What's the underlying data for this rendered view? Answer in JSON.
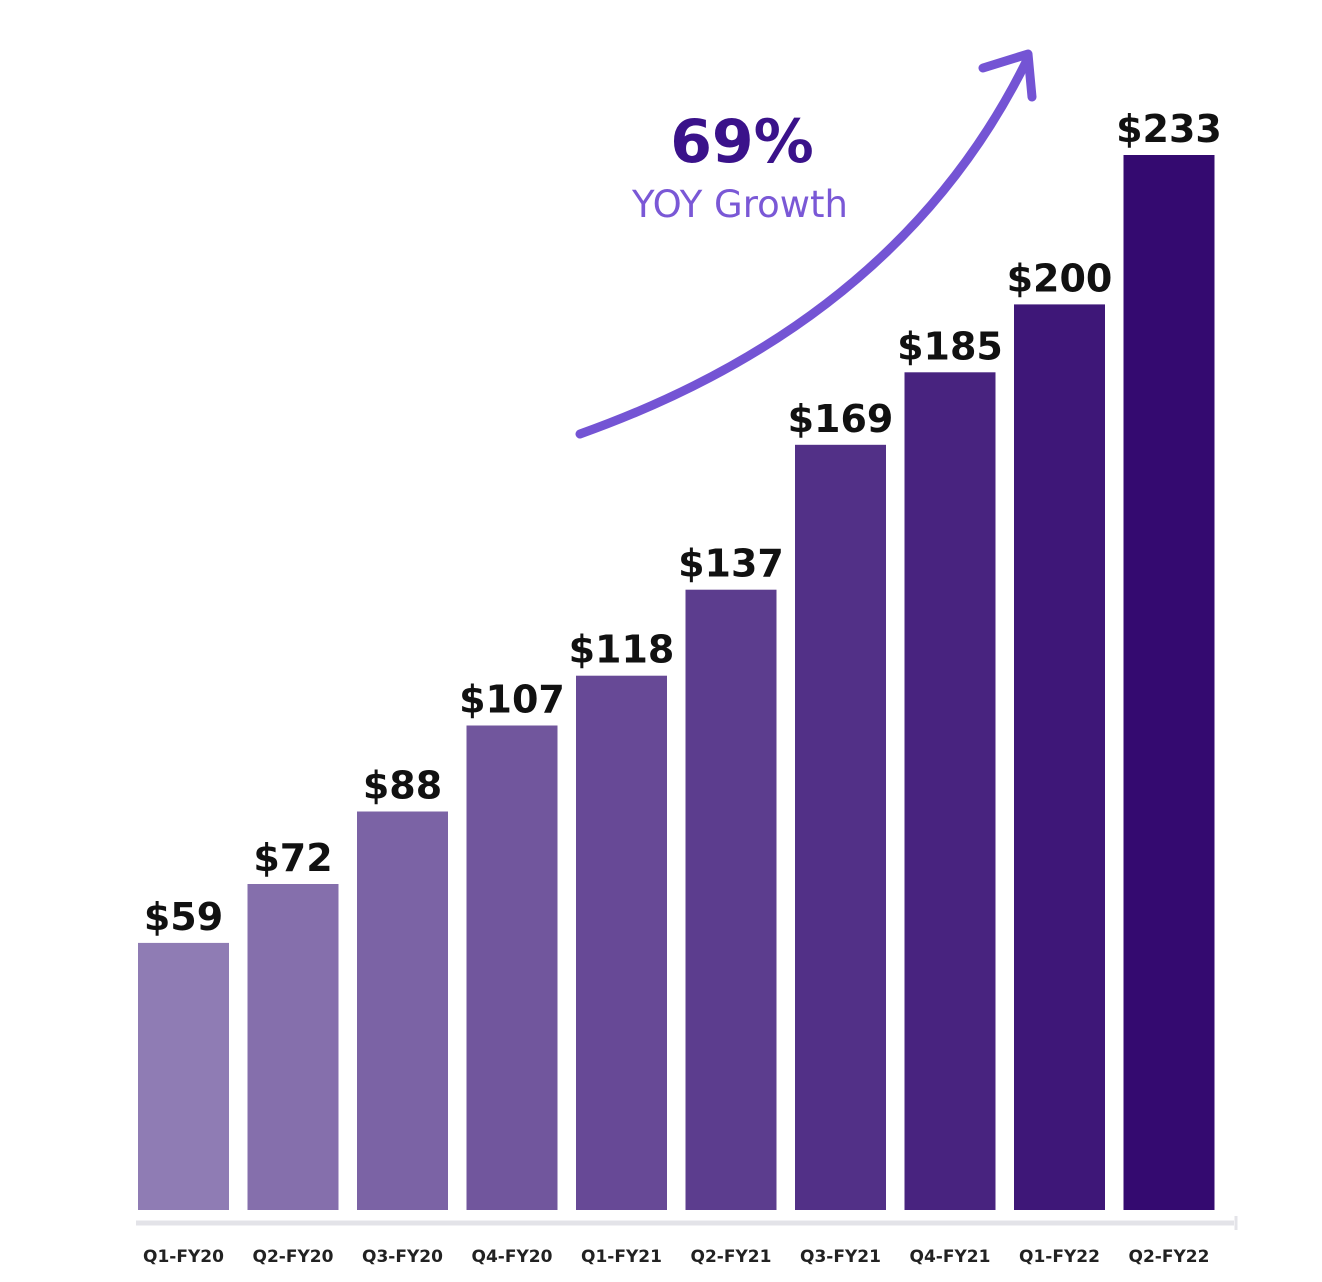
{
  "chart_data": {
    "type": "bar",
    "categories": [
      "Q1-FY20",
      "Q2-FY20",
      "Q3-FY20",
      "Q4-FY20",
      "Q1-FY21",
      "Q2-FY21",
      "Q3-FY21",
      "Q4-FY21",
      "Q1-FY22",
      "Q2-FY22"
    ],
    "values": [
      59,
      72,
      88,
      107,
      118,
      137,
      169,
      185,
      200,
      233
    ],
    "value_labels": [
      "$59",
      "$72",
      "$88",
      "$107",
      "$118",
      "$137",
      "$169",
      "$185",
      "$200",
      "$233"
    ],
    "title": "",
    "xlabel": "",
    "ylabel": "",
    "ylim": [
      0,
      240
    ],
    "grid": false,
    "legend": "none",
    "annotations": {
      "growth_percent": "69%",
      "growth_label": "YOY Growth"
    },
    "colors": {
      "bar_start": "#8f7cb4",
      "bar_end": "#340a70",
      "arrow": "#7454d4",
      "growth_percent": "#3a128a",
      "growth_label": "#7a58d6",
      "axis": "#e3e3e8"
    }
  }
}
